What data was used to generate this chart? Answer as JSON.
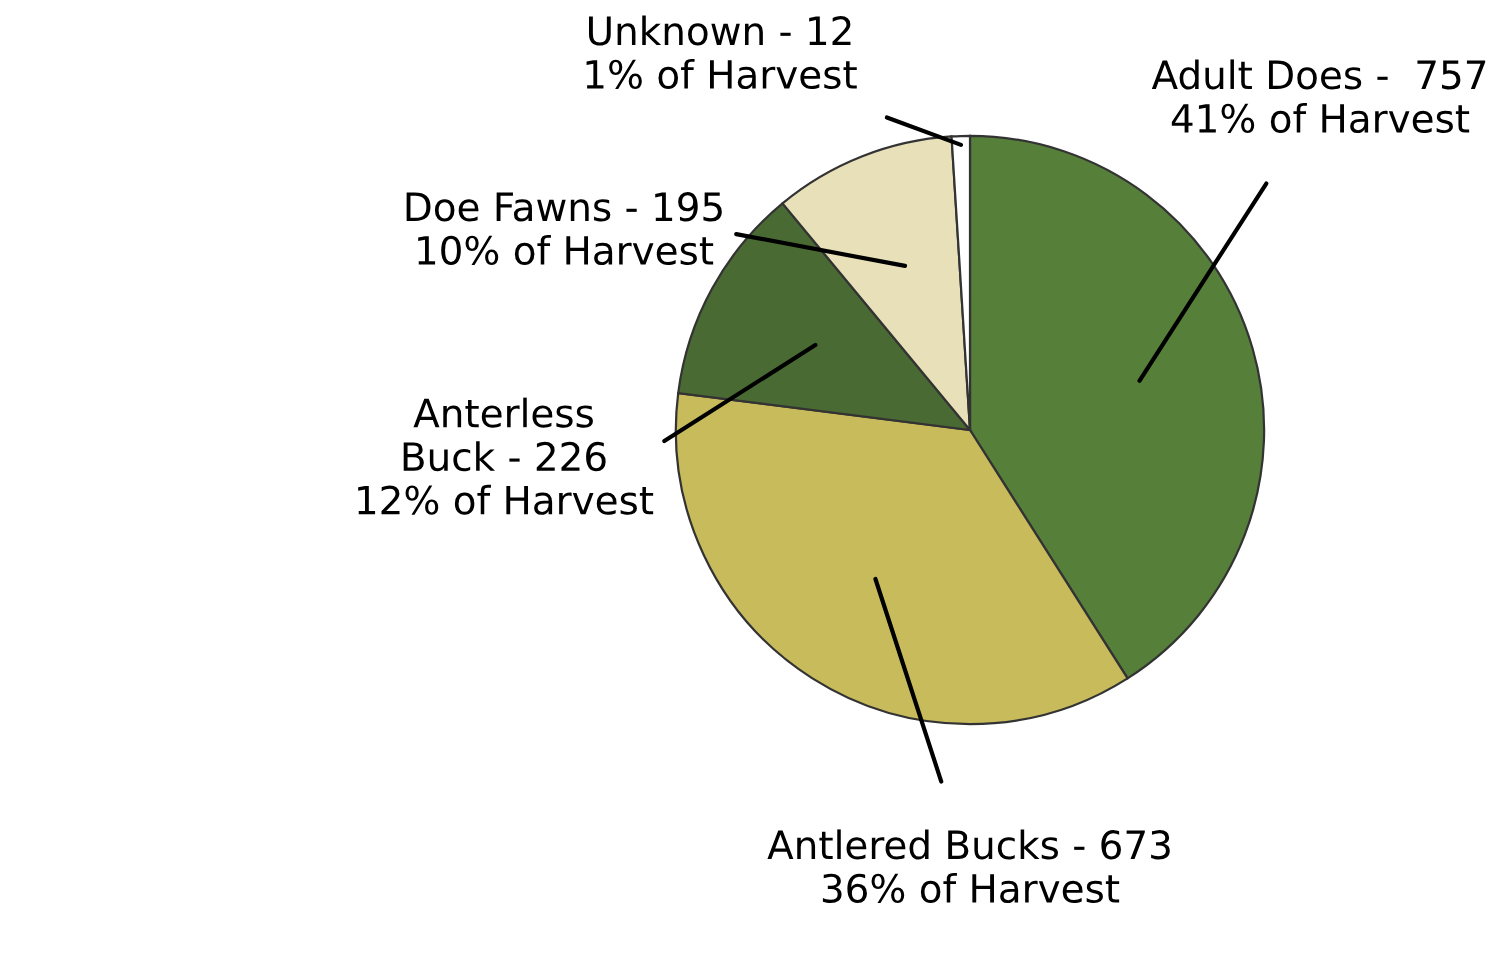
{
  "chart_data": {
    "type": "pie",
    "categories": [
      "Adult Does -  757",
      "Antlered Bucks - 673",
      "Anterless\nBuck - 226",
      "Doe Fawns - 195",
      "Unknown - 12"
    ],
    "values": [
      41,
      36,
      12,
      10,
      1
    ],
    "value_labels": [
      "41% of Harvest",
      "36% of Harvest",
      "12% of Harvest",
      "10% of Harvest",
      "1% of Harvest"
    ],
    "colors": [
      "#56803a",
      "#c8bb5c",
      "#4a6a33",
      "#e8e0b9",
      "#ffffff"
    ]
  }
}
